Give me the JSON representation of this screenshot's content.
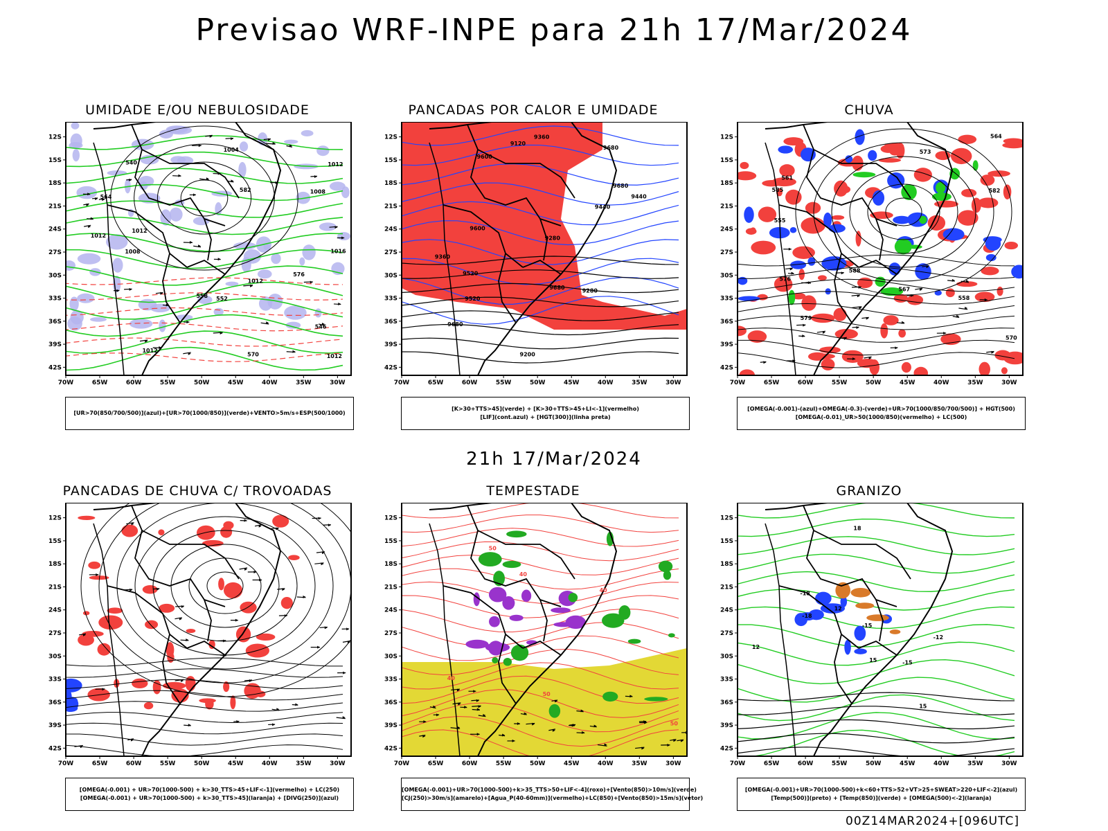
{
  "header": {
    "title": "Previsao WRF-INPE  para 21h 17/Mar/2024"
  },
  "subheader": {
    "title": "21h 17/Mar/2024"
  },
  "footer": {
    "run": "00Z14MAR2024+[096UTC]"
  },
  "axes": {
    "lat_labels": [
      "12S",
      "15S",
      "18S",
      "21S",
      "24S",
      "27S",
      "30S",
      "33S",
      "36S",
      "39S",
      "42S"
    ],
    "lon_labels": [
      "70W",
      "65W",
      "60W",
      "55W",
      "50W",
      "45W",
      "40W",
      "35W",
      "30W"
    ]
  },
  "colors": {
    "red": "#f2413d",
    "green": "#22cc22",
    "blue": "#2244ff",
    "lavender": "#b4b4ee",
    "yellow": "#e3d835",
    "purple": "#9933cc",
    "orange": "#d97a2a",
    "black": "#000000"
  },
  "panels": [
    {
      "id": "umidade",
      "title": "UMIDADE E/OU NEBULOSIDADE",
      "legend": [
        "[UR>70(850/700/500)](azul)+[UR>70(1000/850)](verde)+VENTO>5m/s+ESP(500/1000)"
      ],
      "contour_labels": [
        "1012",
        "1012",
        "1012",
        "1008",
        "1004",
        "1012",
        "1012",
        "1016",
        "1012",
        "1008",
        "576",
        "570",
        "564",
        "558",
        "552",
        "546",
        "540",
        "582"
      ]
    },
    {
      "id": "pancadas-calor",
      "title": "PANCADAS POR CALOR E UMIDADE",
      "legend": [
        "[K>30+TTS>45](verde) + [K>30+TTS>45+LI<-1](vermelho)",
        "[LIF](cont.azul) + [HGT(300)](linha preta)"
      ],
      "contour_labels": [
        "9680",
        "9680",
        "9600",
        "9680",
        "9680",
        "9600",
        "9520",
        "9520",
        "9440",
        "9440",
        "9360",
        "9360",
        "9280",
        "9280",
        "9200",
        "9120"
      ]
    },
    {
      "id": "chuva",
      "title": "CHUVA",
      "legend": [
        "[OMEGA(-0.001)-(azul)+OMEGA(-0.3)-(verde)+UR>70(1000/850/700/500)] + HGT(500)",
        "[OMEGA(-0.01)_UR>50(1000/850)(vermelho) + LC(500)"
      ],
      "contour_labels": [
        "588",
        "585",
        "582",
        "579",
        "576",
        "573",
        "570",
        "567",
        "564",
        "561",
        "558",
        "555"
      ]
    },
    {
      "id": "trovoadas",
      "title": "PANCADAS DE CHUVA C/ TROVOADAS",
      "legend": [
        "[OMEGA(-0.001) + UR>70(1000-500) + k>30_TTS>45+LIF<-1](vermelho) + LC(250)",
        "[OMEGA(-0.001) + UR>70(1000-500) + k>30_TTS>45](laranja) + [DIVG(250)](azul)"
      ],
      "contour_labels": []
    },
    {
      "id": "tempestade",
      "title": "TEMPESTADE",
      "legend": [
        "[OMEGA(-0.001)+UR>70(1000-500)+k>35_TTS>50+LIF<-4](roxo)+[Vento(850)>10m/s](verde)",
        "[CJ(250)>30m/s](amarelo)+[Agua_P(40-60mm)](vermelho)+LC(850)+[Vento(850)>15m/s](vetor)"
      ],
      "contour_labels": [
        "50",
        "50",
        "40",
        "40",
        "40",
        "50"
      ]
    },
    {
      "id": "granizo",
      "title": "GRANIZO",
      "legend": [
        "[OMEGA(-0.001)+UR>70(1000-500)+k<60+TTS>52+VT>25+SWEAT>220+LIF<-2](azul)",
        "[Temp(500)](preto) + [Temp(850)](verde) + [OMEGA(500)<-2](laranja)"
      ],
      "contour_labels": [
        "-12",
        "-15",
        "-18",
        "-15",
        "-18",
        "12",
        "15",
        "18",
        "12",
        "15"
      ]
    }
  ]
}
